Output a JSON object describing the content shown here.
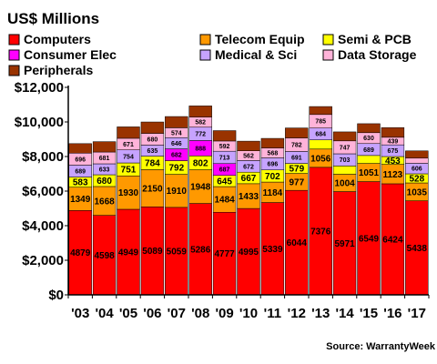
{
  "chart_data": {
    "type": "bar",
    "stacked": true,
    "title": "US$ Millions",
    "source": "Source: WarrantyWeek",
    "categories": [
      "'03",
      "'04",
      "'05",
      "'06",
      "'07",
      "'08",
      "'09",
      "'10",
      "'11",
      "'12",
      "'13",
      "'14",
      "'15",
      "'16",
      "'17"
    ],
    "ylim": [
      0,
      12000
    ],
    "yticks": [
      0,
      2000,
      4000,
      6000,
      8000,
      10000,
      12000
    ],
    "ytick_labels": [
      "$0",
      "$2,000",
      "$4,000",
      "$6,000",
      "$8,000",
      "$10,000",
      "$12,000"
    ],
    "grid": false,
    "legend_position": "top",
    "series": [
      {
        "name": "Computers",
        "color": "#ff0000",
        "values": [
          4879,
          4598,
          4949,
          5089,
          5059,
          5286,
          4777,
          4995,
          5339,
          6044,
          7376,
          5971,
          6549,
          6424,
          5438
        ]
      },
      {
        "name": "Telecom Equip",
        "color": "#ff9900",
        "values": [
          1349,
          1668,
          1930,
          2150,
          1910,
          1948,
          1484,
          1433,
          1184,
          977,
          1056,
          1004,
          1051,
          1123,
          1035
        ]
      },
      {
        "name": "Semi & PCB",
        "color": "#ffff00",
        "values": [
          583,
          680,
          751,
          784,
          792,
          802,
          645,
          667,
          702,
          579,
          530,
          480,
          460,
          453,
          528
        ]
      },
      {
        "name": "Consumer Elec",
        "color": "#ff00ff",
        "values": [
          0,
          0,
          0,
          0,
          682,
          888,
          687,
          0,
          0,
          0,
          0,
          0,
          0,
          0,
          0
        ]
      },
      {
        "name": "Medical & Sci",
        "color": "#c6a3ff",
        "values": [
          689,
          633,
          754,
          635,
          646,
          772,
          713,
          672,
          696,
          691,
          684,
          703,
          689,
          675,
          606
        ]
      },
      {
        "name": "Data Storage",
        "color": "#ffb3d9",
        "values": [
          696,
          681,
          671,
          680,
          574,
          582,
          592,
          562,
          568,
          782,
          785,
          747,
          630,
          439,
          300
        ]
      },
      {
        "name": "Peripherals",
        "color": "#993300",
        "values": [
          550,
          600,
          660,
          660,
          650,
          650,
          600,
          560,
          560,
          580,
          460,
          520,
          520,
          560,
          420
        ]
      }
    ],
    "label_rows": [
      {
        "series": 0,
        "labels": [
          "4879",
          "4598",
          "4949",
          "5089",
          "5059",
          "5286",
          "4777",
          "4995",
          "5339",
          "6044",
          "7376",
          "5971",
          "6549",
          "6424",
          "5438"
        ]
      },
      {
        "series": 1,
        "labels": [
          "1349",
          "1668",
          "1930",
          "2150",
          "1910",
          "1948",
          "1484",
          "1433",
          "1184",
          "977",
          "1056",
          "1004",
          "1051",
          "1123",
          "1035"
        ]
      },
      {
        "series": 2,
        "labels": [
          "583",
          "680",
          "751",
          "784",
          "792",
          "802",
          "645",
          "667",
          "702",
          "579",
          "",
          "",
          "",
          "453",
          "528"
        ]
      },
      {
        "series": 3,
        "labels": [
          "",
          "",
          "",
          "",
          "682",
          "888",
          "687",
          "",
          "",
          "",
          "",
          "",
          "",
          "",
          ""
        ]
      },
      {
        "series": 4,
        "labels": [
          "689",
          "633",
          "754",
          "635",
          "646",
          "772",
          "713",
          "672",
          "696",
          "691",
          "684",
          "703",
          "689",
          "675",
          "606"
        ]
      },
      {
        "series": 5,
        "labels": [
          "696",
          "681",
          "671",
          "680",
          "574",
          "582",
          "592",
          "562",
          "568",
          "782",
          "785",
          "747",
          "630",
          "439",
          ""
        ]
      }
    ]
  }
}
